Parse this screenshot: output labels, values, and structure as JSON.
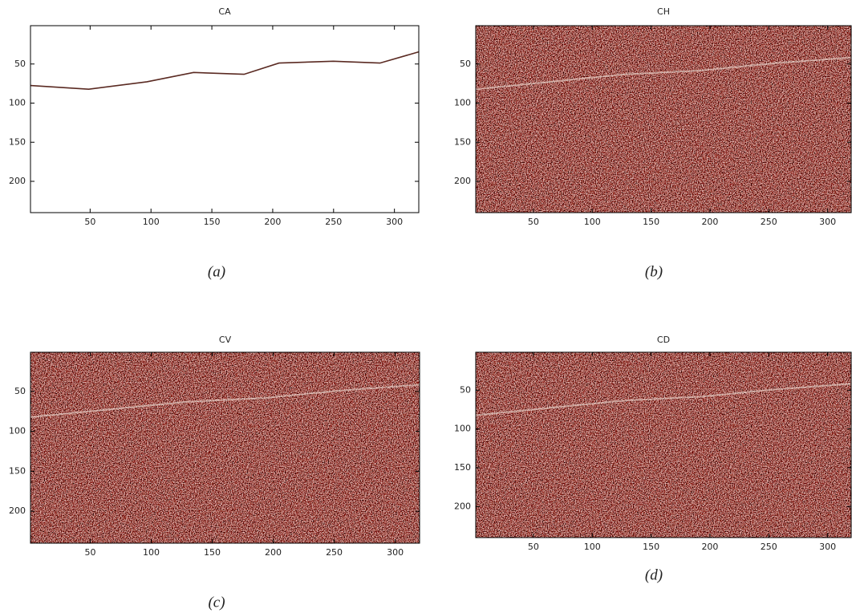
{
  "chart_data": [
    {
      "type": "image",
      "title": "CA",
      "caption": "(a)",
      "xlim": [
        1,
        320
      ],
      "ylim": [
        1,
        240
      ],
      "y_reversed": true,
      "xticks": [
        50,
        100,
        150,
        200,
        250,
        300
      ],
      "yticks": [
        50,
        100,
        150,
        200
      ]
    },
    {
      "type": "image",
      "title": "CH",
      "caption": "(b)",
      "xlim": [
        1,
        320
      ],
      "ylim": [
        1,
        240
      ],
      "y_reversed": true,
      "xticks": [
        50,
        100,
        150,
        200,
        250,
        300
      ],
      "yticks": [
        50,
        100,
        150,
        200
      ]
    },
    {
      "type": "image",
      "title": "CV",
      "caption": "(c)",
      "xlim": [
        1,
        320
      ],
      "ylim": [
        1,
        240
      ],
      "y_reversed": true,
      "xticks": [
        50,
        100,
        150,
        200,
        250,
        300
      ],
      "yticks": [
        50,
        100,
        150,
        200
      ]
    },
    {
      "type": "image",
      "title": "CD",
      "caption": "(d)",
      "xlim": [
        1,
        320
      ],
      "ylim": [
        1,
        240
      ],
      "y_reversed": true,
      "xticks": [
        50,
        100,
        150,
        200,
        250,
        300
      ],
      "yticks": [
        50,
        100,
        150,
        200
      ]
    }
  ]
}
